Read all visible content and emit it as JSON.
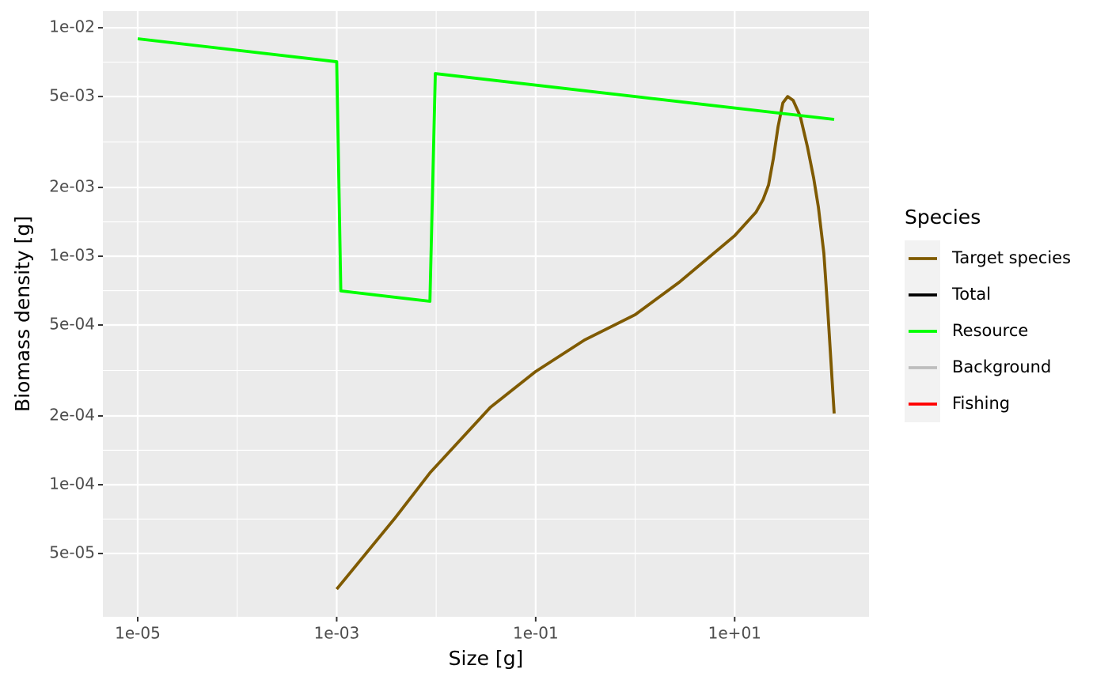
{
  "chart_data": {
    "type": "line",
    "xlabel": "Size [g]",
    "ylabel": "Biomass density [g]",
    "log_x": true,
    "log_y": true,
    "grid": true,
    "xlim": [
      4.4668e-06,
      223.87
    ],
    "ylim": [
      2.642e-05,
      0.01183
    ],
    "xticks": [
      {
        "value": 1e-05,
        "label": "1e-05"
      },
      {
        "value": 0.001,
        "label": "1e-03"
      },
      {
        "value": 0.1,
        "label": "1e-01"
      },
      {
        "value": 10,
        "label": "1e+01"
      }
    ],
    "yticks": [
      {
        "value": 0.01,
        "label": "1e-02"
      },
      {
        "value": 0.005,
        "label": "5e-03"
      },
      {
        "value": 0.002,
        "label": "2e-03"
      },
      {
        "value": 0.001,
        "label": "1e-03"
      },
      {
        "value": 0.0005,
        "label": "5e-04"
      },
      {
        "value": 0.0002,
        "label": "2e-04"
      },
      {
        "value": 0.0001,
        "label": "1e-04"
      },
      {
        "value": 5e-05,
        "label": "5e-05"
      }
    ],
    "legend_title": "Species",
    "legend_position": "right",
    "series": [
      {
        "name": "Target species",
        "color": "#7f5a00",
        "x": [
          0.001,
          0.00386,
          0.0087,
          0.035,
          0.1,
          0.31,
          1,
          2.78,
          10,
          16.4,
          19.3,
          21.9,
          24.5,
          27.3,
          30.5,
          34.1,
          38.7,
          45.6,
          53.7,
          62.2,
          69.4,
          78.8,
          86.5,
          100
        ],
        "values": [
          3.49e-05,
          7.15e-05,
          0.000113,
          0.000218,
          0.000313,
          0.00043,
          0.000555,
          0.00077,
          0.00123,
          0.00156,
          0.00177,
          0.00205,
          0.00268,
          0.00369,
          0.00469,
          0.005,
          0.00481,
          0.0041,
          0.00303,
          0.0022,
          0.00164,
          0.00103,
          0.000568,
          0.000205
        ]
      },
      {
        "name": "Total",
        "color": "#000000",
        "x": [],
        "values": []
      },
      {
        "name": "Resource",
        "color": "#00ff00",
        "x": [
          1e-05,
          0.001,
          0.0011,
          0.00865,
          0.0098,
          100
        ],
        "values": [
          0.00895,
          0.0071,
          0.000705,
          0.000635,
          0.0063,
          0.00397
        ]
      },
      {
        "name": "Background",
        "color": "#bebebe",
        "x": [],
        "values": []
      },
      {
        "name": "Fishing",
        "color": "#ff0000",
        "x": [],
        "values": []
      }
    ]
  }
}
